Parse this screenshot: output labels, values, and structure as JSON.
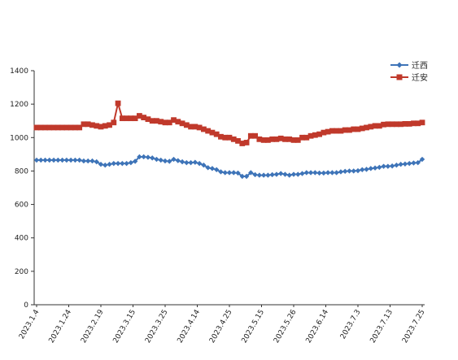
{
  "chart_data": {
    "type": "line",
    "title": "",
    "xlabel": "",
    "ylabel": "",
    "ylim": [
      0,
      1400
    ],
    "yticks": [
      0,
      200,
      400,
      600,
      800,
      1000,
      1200,
      1400
    ],
    "x_tick_labels": [
      "2023.1.4",
      "2023.1.24",
      "2023.2.19",
      "2023.3.15",
      "2023.3.25",
      "2023.4.14",
      "2023.4.25",
      "2023.5.15",
      "2023.5.26",
      "2023.6.14",
      "2023.7.3",
      "2023.7.13",
      "2023.7.25"
    ],
    "grid": false,
    "legend_position": "top-right",
    "series": [
      {
        "name": "迁西",
        "color": "#3e74b8",
        "marker": "diamond",
        "values": [
          865,
          865,
          865,
          865,
          865,
          865,
          865,
          865,
          865,
          865,
          865,
          860,
          860,
          860,
          855,
          840,
          835,
          840,
          845,
          845,
          845,
          845,
          850,
          858,
          885,
          885,
          882,
          878,
          870,
          865,
          860,
          858,
          870,
          862,
          855,
          850,
          850,
          852,
          845,
          835,
          820,
          815,
          808,
          795,
          790,
          790,
          790,
          788,
          768,
          768,
          790,
          778,
          775,
          775,
          775,
          778,
          780,
          785,
          780,
          775,
          780,
          780,
          785,
          790,
          790,
          790,
          788,
          788,
          790,
          790,
          790,
          795,
          798,
          800,
          800,
          802,
          808,
          810,
          815,
          818,
          822,
          828,
          828,
          830,
          835,
          840,
          842,
          845,
          848,
          850,
          870
        ]
      },
      {
        "name": "迁安",
        "color": "#c0392b",
        "marker": "square",
        "values": [
          1060,
          1060,
          1060,
          1060,
          1060,
          1060,
          1060,
          1060,
          1060,
          1060,
          1060,
          1080,
          1080,
          1075,
          1070,
          1065,
          1070,
          1075,
          1090,
          1205,
          1115,
          1115,
          1115,
          1115,
          1130,
          1120,
          1110,
          1100,
          1100,
          1095,
          1090,
          1090,
          1105,
          1095,
          1085,
          1075,
          1065,
          1065,
          1060,
          1050,
          1040,
          1030,
          1020,
          1005,
          1000,
          1000,
          990,
          980,
          965,
          970,
          1010,
          1010,
          990,
          985,
          985,
          990,
          990,
          995,
          990,
          990,
          985,
          985,
          1000,
          1000,
          1010,
          1015,
          1020,
          1030,
          1035,
          1040,
          1040,
          1040,
          1045,
          1045,
          1050,
          1050,
          1055,
          1060,
          1065,
          1070,
          1070,
          1078,
          1080,
          1080,
          1080,
          1080,
          1082,
          1082,
          1085,
          1085,
          1090
        ]
      }
    ]
  }
}
